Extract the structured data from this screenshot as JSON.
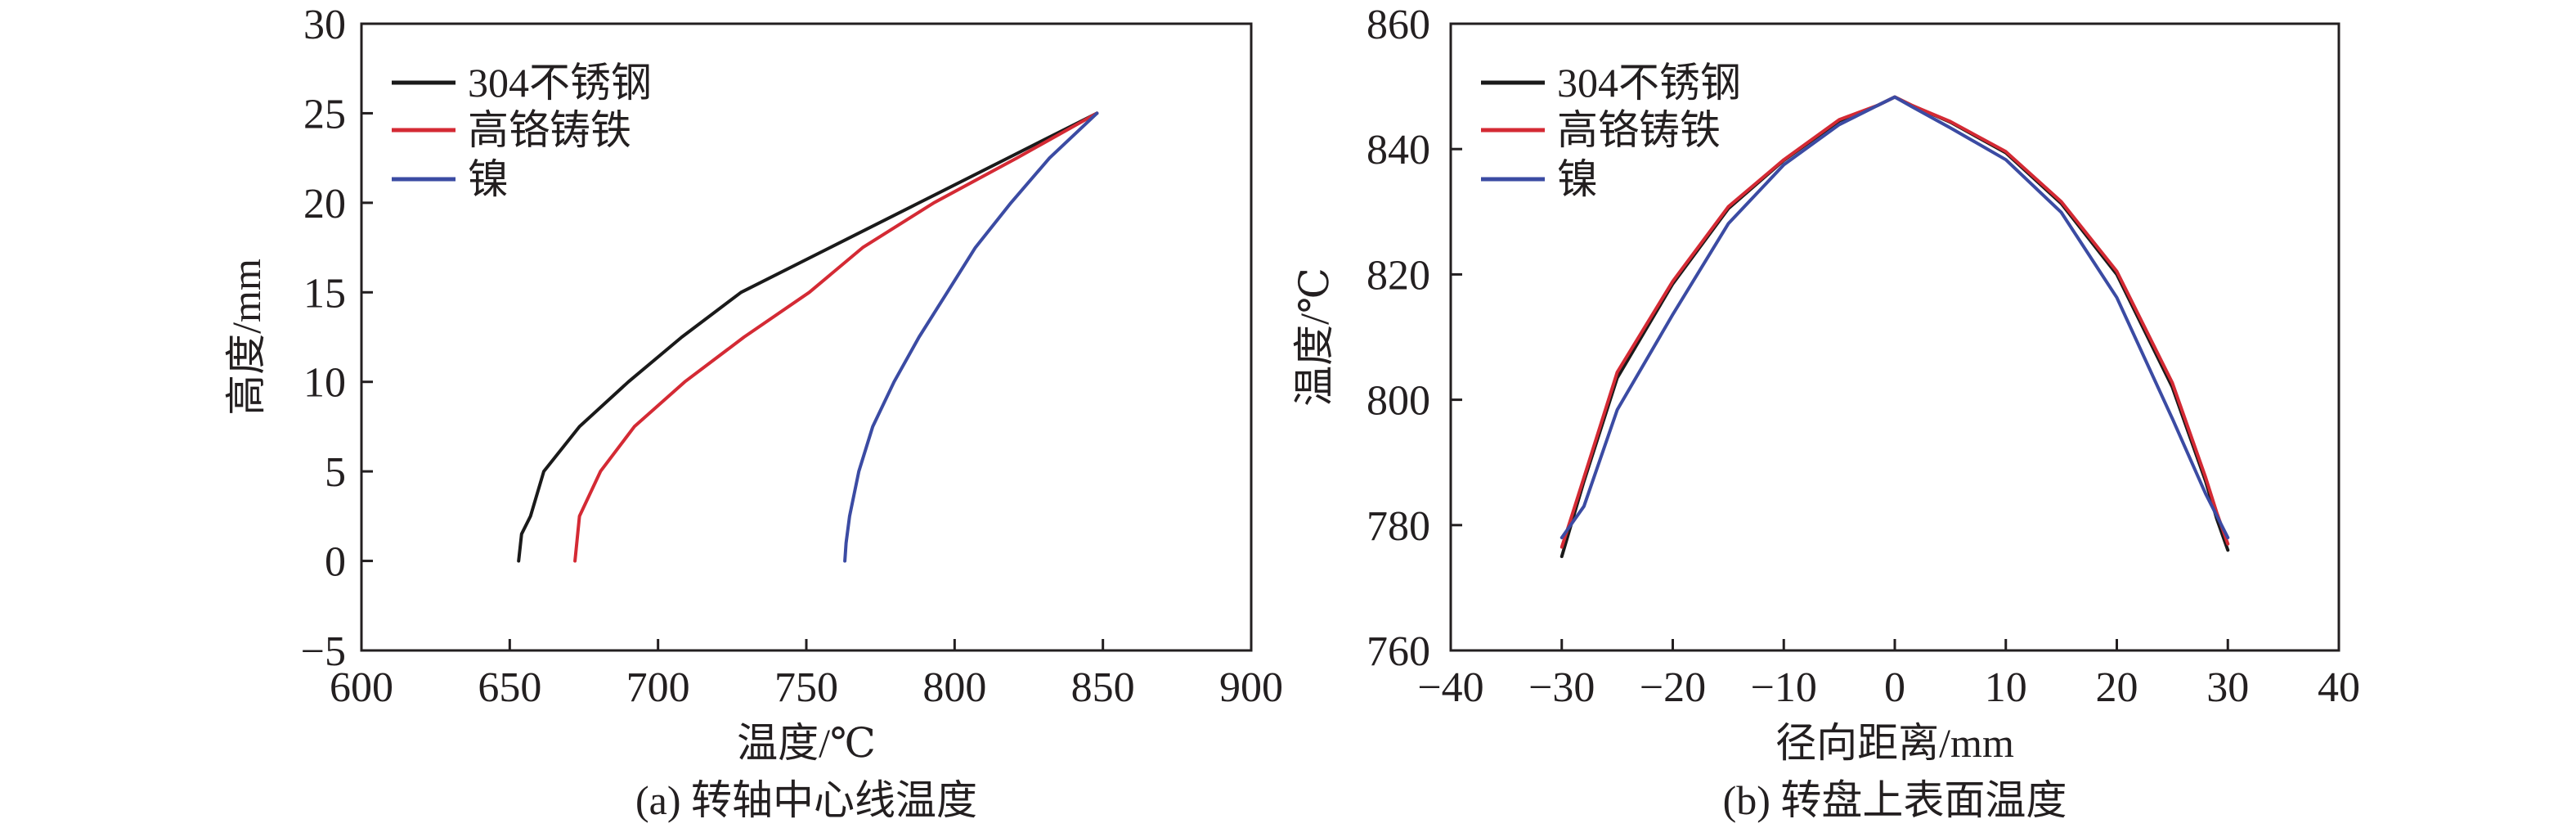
{
  "chart_data": [
    {
      "type": "line",
      "caption": "(a) 转轴中心线温度",
      "xlabel": "温度/℃",
      "ylabel": "高度/mm",
      "xlim": [
        600,
        900
      ],
      "ylim": [
        -5,
        30
      ],
      "xticks": [
        600,
        650,
        700,
        750,
        800,
        850,
        900
      ],
      "yticks": [
        -5,
        0,
        5,
        10,
        15,
        20,
        25,
        30
      ],
      "grid": false,
      "legend_position": "top-left",
      "series": [
        {
          "name": "304不锈钢",
          "color": "#1a1a1a",
          "points": [
            [
              653,
              0
            ],
            [
              654,
              1.5
            ],
            [
              657,
              2.5
            ],
            [
              661.5,
              5
            ],
            [
              673.5,
              7.5
            ],
            [
              690,
              10
            ],
            [
              708,
              12.5
            ],
            [
              728,
              15
            ],
            [
              758,
              17.5
            ],
            [
              788,
              20
            ],
            [
              818,
              22.5
            ],
            [
              848,
              25
            ]
          ]
        },
        {
          "name": "高铬铸铁",
          "color": "#d42a34",
          "points": [
            [
              672,
              0
            ],
            [
              672.6,
              1
            ],
            [
              673.5,
              2.5
            ],
            [
              680.6,
              5
            ],
            [
              692,
              7.5
            ],
            [
              709,
              10
            ],
            [
              729,
              12.5
            ],
            [
              751,
              15
            ],
            [
              769,
              17.5
            ],
            [
              793,
              20
            ],
            [
              821,
              22.5
            ],
            [
              848,
              25
            ]
          ]
        },
        {
          "name": "镍",
          "color": "#3b4ba3",
          "points": [
            [
              763,
              0
            ],
            [
              763.4,
              1
            ],
            [
              764.6,
              2.5
            ],
            [
              767.7,
              5
            ],
            [
              772.4,
              7.5
            ],
            [
              779.6,
              10
            ],
            [
              788,
              12.5
            ],
            [
              797.5,
              15
            ],
            [
              807,
              17.5
            ],
            [
              819,
              20
            ],
            [
              832,
              22.5
            ],
            [
              848,
              25
            ]
          ]
        }
      ]
    },
    {
      "type": "line",
      "caption": "(b) 转盘上表面温度",
      "xlabel": "径向距离/mm",
      "ylabel": "温度/℃",
      "xlim": [
        -40,
        40
      ],
      "ylim": [
        760,
        860
      ],
      "xticks": [
        -40,
        -30,
        -20,
        -10,
        0,
        10,
        20,
        30,
        40
      ],
      "yticks": [
        760,
        780,
        800,
        820,
        840,
        860
      ],
      "grid": false,
      "legend_position": "top-left",
      "series": [
        {
          "name": "304不锈钢",
          "color": "#1a1a1a",
          "points": [
            [
              -30,
              775
            ],
            [
              -29,
              781
            ],
            [
              -28,
              787
            ],
            [
              -25,
              803.5
            ],
            [
              -20,
              818.5
            ],
            [
              -15,
              830.5
            ],
            [
              -10,
              838.2
            ],
            [
              -5,
              844.5
            ],
            [
              -1.5,
              847
            ],
            [
              0,
              848.3
            ],
            [
              1.5,
              847
            ],
            [
              5,
              844.3
            ],
            [
              10,
              839.4
            ],
            [
              15,
              831.3
            ],
            [
              20,
              820
            ],
            [
              25,
              802
            ],
            [
              28,
              787
            ],
            [
              29,
              781
            ],
            [
              30,
              776
            ]
          ]
        },
        {
          "name": "高铬铸铁",
          "color": "#d42a34",
          "points": [
            [
              -30,
              776.5
            ],
            [
              -29,
              782
            ],
            [
              -28,
              787.6
            ],
            [
              -25,
              804.4
            ],
            [
              -20,
              818.9
            ],
            [
              -15,
              830.8
            ],
            [
              -10,
              838.3
            ],
            [
              -5,
              844.7
            ],
            [
              -1.5,
              847
            ],
            [
              0,
              848.3
            ],
            [
              1.5,
              847
            ],
            [
              5,
              844.4
            ],
            [
              10,
              839.6
            ],
            [
              15,
              831.6
            ],
            [
              20,
              820.5
            ],
            [
              25,
              802.7
            ],
            [
              28,
              787.6
            ],
            [
              29,
              782
            ],
            [
              30,
              777
            ]
          ]
        },
        {
          "name": "镍",
          "color": "#3b4ba3",
          "points": [
            [
              -30,
              778
            ],
            [
              -28,
              783
            ],
            [
              -25,
              798.4
            ],
            [
              -20,
              813.6
            ],
            [
              -15,
              828.1
            ],
            [
              -10,
              837.5
            ],
            [
              -5,
              843.9
            ],
            [
              -1.5,
              847
            ],
            [
              0,
              848.3
            ],
            [
              1.5,
              846.8
            ],
            [
              5,
              843.4
            ],
            [
              10,
              838.3
            ],
            [
              15,
              829.9
            ],
            [
              20,
              816.3
            ],
            [
              25,
              797
            ],
            [
              28,
              785
            ],
            [
              30,
              778
            ]
          ]
        }
      ]
    }
  ]
}
